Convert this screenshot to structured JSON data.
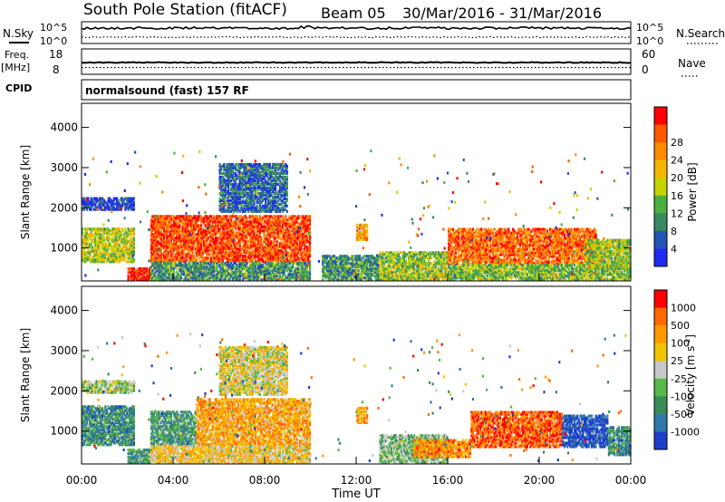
{
  "header": {
    "station": "South Pole Station (fitACF)",
    "beam": "Beam 05",
    "dates": "30/Mar/2016 - 31/Mar/2016"
  },
  "left_labels": {
    "nsky": "N.Sky",
    "freq": "Freq.",
    "mhz": "[MHz]",
    "cpid": "CPID"
  },
  "right_labels": {
    "nsearch": "N.Search",
    "nave": "Nave"
  },
  "mode_text": "normalsound (fast) 157 RF",
  "chart_data": [
    {
      "type": "line",
      "panel": "noise",
      "y_ticks_left": [
        "10^5",
        "10^0"
      ],
      "y_ticks_right": [
        "10^5",
        "10^0"
      ],
      "series": [
        {
          "name": "N.Sky",
          "style": "solid",
          "approx_level_log10": 4.5
        },
        {
          "name": "N.Search",
          "style": "dotted",
          "approx_level_log10": 1.5
        }
      ]
    },
    {
      "type": "line",
      "panel": "frequency / nave",
      "y_ticks_left": [
        "18",
        "8"
      ],
      "y_ticks_right": [
        "60",
        "0"
      ],
      "series": [
        {
          "name": "Freq.",
          "style": "solid",
          "approx_value_mhz": 12
        },
        {
          "name": "Nave",
          "style": "dotted",
          "approx_value": 10
        }
      ]
    },
    {
      "type": "heatmap",
      "panel": "power",
      "xlabel": "",
      "ylabel": "Slant Range [km]",
      "xlim_hours": [
        0,
        24
      ],
      "ylim_km": [
        180,
        4600
      ],
      "y_ticks": [
        "1000",
        "2000",
        "3000",
        "4000"
      ],
      "colorbar": {
        "label": "Power [dB]",
        "ticks": [
          "4",
          "8",
          "12",
          "16",
          "20",
          "24",
          "28"
        ],
        "colors": [
          "#1f2bf2",
          "#2255b5",
          "#3a8a60",
          "#4cb040",
          "#c6d200",
          "#f4b600",
          "#ff8a00",
          "#ff5a00",
          "#ff0000"
        ]
      },
      "regions": [
        {
          "t0": 0.0,
          "t1": 2.3,
          "r0": 650,
          "r1": 1500,
          "level": 0.5
        },
        {
          "t0": 0.0,
          "t1": 2.3,
          "r0": 1950,
          "r1": 2250,
          "level": 0.1
        },
        {
          "t0": 2.0,
          "t1": 3.0,
          "r0": 200,
          "r1": 500,
          "level": 0.95
        },
        {
          "t0": 3.0,
          "t1": 10.0,
          "r0": 650,
          "r1": 1800,
          "level": 0.85
        },
        {
          "t0": 3.0,
          "t1": 10.0,
          "r0": 200,
          "r1": 650,
          "level": 0.3
        },
        {
          "t0": 6.0,
          "t1": 9.0,
          "r0": 1900,
          "r1": 3100,
          "level": 0.2
        },
        {
          "t0": 10.5,
          "t1": 13.0,
          "r0": 200,
          "r1": 800,
          "level": 0.3
        },
        {
          "t0": 12.0,
          "t1": 12.5,
          "r0": 1200,
          "r1": 1600,
          "level": 0.7
        },
        {
          "t0": 13.0,
          "t1": 16.0,
          "r0": 200,
          "r1": 900,
          "level": 0.45
        },
        {
          "t0": 16.0,
          "t1": 22.5,
          "r0": 600,
          "r1": 1500,
          "level": 0.8
        },
        {
          "t0": 16.0,
          "t1": 24.0,
          "r0": 200,
          "r1": 600,
          "level": 0.4
        },
        {
          "t0": 22.0,
          "t1": 24.0,
          "r0": 550,
          "r1": 1200,
          "level": 0.45
        }
      ]
    },
    {
      "type": "heatmap",
      "panel": "velocity",
      "xlabel": "Time UT",
      "ylabel": "Slant Range [km]",
      "xlim_hours": [
        0,
        24
      ],
      "ylim_km": [
        180,
        4600
      ],
      "x_ticks": [
        "00:00",
        "04:00",
        "08:00",
        "12:00",
        "16:00",
        "20:00",
        "00:00"
      ],
      "y_ticks": [
        "1000",
        "2000",
        "3000",
        "4000"
      ],
      "colorbar": {
        "label": "Velocity [m s",
        "label_sup": "-1",
        "label_end": "]",
        "ticks": [
          "1000",
          "500",
          "100",
          "25",
          "-25",
          "-100",
          "-500",
          "-1000"
        ],
        "colors": [
          "#1c3fc8",
          "#2f78a8",
          "#3a8a5a",
          "#58b84a",
          "#c8c8c8",
          "#f0c400",
          "#ff9a00",
          "#ff6a00",
          "#ff0000"
        ]
      },
      "regions": [
        {
          "t0": 0.0,
          "t1": 2.3,
          "r0": 650,
          "r1": 1600,
          "level": 0.25
        },
        {
          "t0": 0.0,
          "t1": 2.3,
          "r0": 1950,
          "r1": 2250,
          "level": 0.45
        },
        {
          "t0": 2.0,
          "t1": 3.0,
          "r0": 200,
          "r1": 550,
          "level": 0.3
        },
        {
          "t0": 3.0,
          "t1": 5.0,
          "r0": 650,
          "r1": 1500,
          "level": 0.3
        },
        {
          "t0": 5.0,
          "t1": 10.0,
          "r0": 650,
          "r1": 1800,
          "level": 0.7
        },
        {
          "t0": 3.0,
          "t1": 10.0,
          "r0": 200,
          "r1": 650,
          "level": 0.6
        },
        {
          "t0": 6.0,
          "t1": 9.0,
          "r0": 1900,
          "r1": 3100,
          "level": 0.55
        },
        {
          "t0": 12.0,
          "t1": 12.5,
          "r0": 1200,
          "r1": 1600,
          "level": 0.7
        },
        {
          "t0": 13.0,
          "t1": 16.0,
          "r0": 200,
          "r1": 900,
          "level": 0.4
        },
        {
          "t0": 14.5,
          "t1": 17.0,
          "r0": 350,
          "r1": 800,
          "level": 0.75
        },
        {
          "t0": 17.0,
          "t1": 21.0,
          "r0": 600,
          "r1": 1500,
          "level": 0.85
        },
        {
          "t0": 21.0,
          "t1": 23.0,
          "r0": 600,
          "r1": 1400,
          "level": 0.05
        },
        {
          "t0": 23.0,
          "t1": 24.0,
          "r0": 400,
          "r1": 1100,
          "level": 0.25
        }
      ]
    }
  ]
}
